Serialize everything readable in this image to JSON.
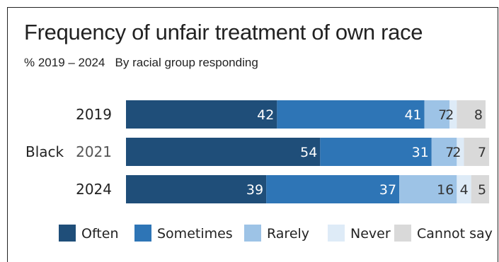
{
  "chart_data": {
    "type": "bar",
    "orientation": "horizontal",
    "stacked": true,
    "title": "Frequency of unfair treatment of own race",
    "subtitle": "% 2019 – 2024   By racial group responding",
    "group_label": "Black",
    "categories": [
      "2019",
      "2021",
      "2024"
    ],
    "series": [
      {
        "name": "Often",
        "color": "#1f4e79",
        "values": [
          42,
          54,
          39
        ]
      },
      {
        "name": "Sometimes",
        "color": "#2e75b6",
        "values": [
          41,
          31,
          37
        ]
      },
      {
        "name": "Rarely",
        "color": "#9dc3e6",
        "values": [
          7,
          7,
          16
        ]
      },
      {
        "name": "Never",
        "color": "#deebf7",
        "values": [
          2,
          2,
          4
        ]
      },
      {
        "name": "Cannot say",
        "color": "#d9d9d9",
        "values": [
          8,
          7,
          5
        ]
      }
    ],
    "legend_position": "bottom",
    "xlim": [
      0,
      100
    ],
    "grid": false
  }
}
